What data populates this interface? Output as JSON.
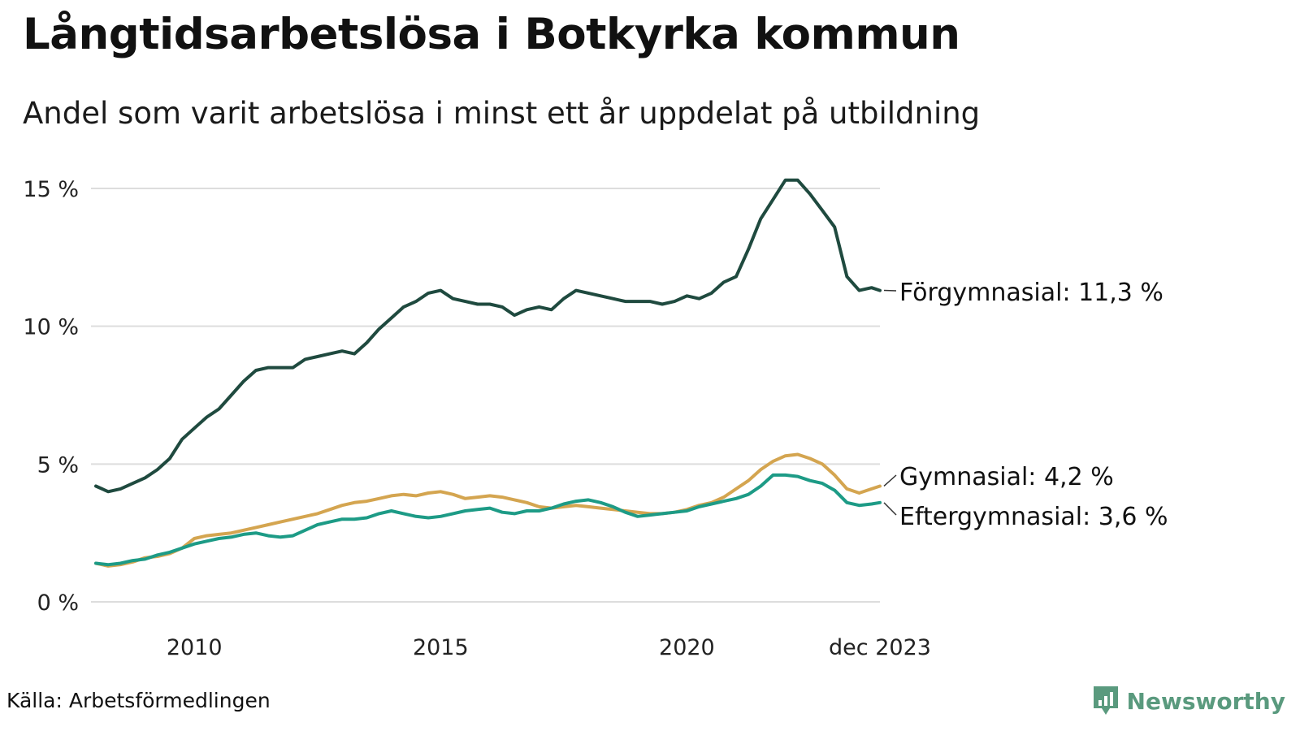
{
  "title": "Långtidsarbetslösa i Botkyrka kommun",
  "subtitle": "Andel som varit arbetslösa i minst ett år uppdelat på utbildning",
  "source": "Källa: Arbetsförmedlingen",
  "brand": "Newsworthy",
  "chart_data": {
    "type": "line",
    "title": "Långtidsarbetslösa i Botkyrka kommun",
    "subtitle": "Andel som varit arbetslösa i minst ett år uppdelat på utbildning",
    "xlabel": "",
    "ylabel": "",
    "x_range": [
      2008.0,
      2023.92
    ],
    "ylim": [
      0,
      15
    ],
    "y_ticks": [
      0,
      5,
      10,
      15
    ],
    "y_tick_labels": [
      "0 %",
      "5 %",
      "10 %",
      "15 %"
    ],
    "x_ticks": [
      2010,
      2015,
      2020,
      2023.92
    ],
    "x_tick_labels": [
      "2010",
      "2015",
      "2020",
      "dec 2023"
    ],
    "grid": true,
    "series": [
      {
        "name": "Förgymnasial",
        "end_label": "Förgymnasial: 11,3 %",
        "color": "#1f4a3f",
        "x": [
          2008.0,
          2008.25,
          2008.5,
          2008.75,
          2009.0,
          2009.25,
          2009.5,
          2009.75,
          2010.0,
          2010.25,
          2010.5,
          2010.75,
          2011.0,
          2011.25,
          2011.5,
          2011.75,
          2012.0,
          2012.25,
          2012.5,
          2012.75,
          2013.0,
          2013.25,
          2013.5,
          2013.75,
          2014.0,
          2014.25,
          2014.5,
          2014.75,
          2015.0,
          2015.25,
          2015.5,
          2015.75,
          2016.0,
          2016.25,
          2016.5,
          2016.75,
          2017.0,
          2017.25,
          2017.5,
          2017.75,
          2018.0,
          2018.25,
          2018.5,
          2018.75,
          2019.0,
          2019.25,
          2019.5,
          2019.75,
          2020.0,
          2020.25,
          2020.5,
          2020.75,
          2021.0,
          2021.25,
          2021.5,
          2021.75,
          2022.0,
          2022.25,
          2022.5,
          2022.75,
          2023.0,
          2023.25,
          2023.5,
          2023.75,
          2023.92
        ],
        "values": [
          4.2,
          4.0,
          4.1,
          4.3,
          4.5,
          4.8,
          5.2,
          5.9,
          6.3,
          6.7,
          7.0,
          7.5,
          8.0,
          8.4,
          8.5,
          8.5,
          8.5,
          8.8,
          8.9,
          9.0,
          9.1,
          9.0,
          9.4,
          9.9,
          10.3,
          10.7,
          10.9,
          11.2,
          11.3,
          11.0,
          10.9,
          10.8,
          10.8,
          10.7,
          10.4,
          10.6,
          10.7,
          10.6,
          11.0,
          11.3,
          11.2,
          11.1,
          11.0,
          10.9,
          10.9,
          10.9,
          10.8,
          10.9,
          11.1,
          11.0,
          11.2,
          11.6,
          11.8,
          12.8,
          13.9,
          14.6,
          15.3,
          15.3,
          14.8,
          14.2,
          13.6,
          11.8,
          11.3,
          11.4,
          11.3
        ]
      },
      {
        "name": "Gymnasial",
        "end_label": "Gymnasial:  4,2 %",
        "color": "#d4a550",
        "x": [
          2008.0,
          2008.25,
          2008.5,
          2008.75,
          2009.0,
          2009.25,
          2009.5,
          2009.75,
          2010.0,
          2010.25,
          2010.5,
          2010.75,
          2011.0,
          2011.25,
          2011.5,
          2011.75,
          2012.0,
          2012.25,
          2012.5,
          2012.75,
          2013.0,
          2013.25,
          2013.5,
          2013.75,
          2014.0,
          2014.25,
          2014.5,
          2014.75,
          2015.0,
          2015.25,
          2015.5,
          2015.75,
          2016.0,
          2016.25,
          2016.5,
          2016.75,
          2017.0,
          2017.25,
          2017.5,
          2017.75,
          2018.0,
          2018.25,
          2018.5,
          2018.75,
          2019.0,
          2019.25,
          2019.5,
          2019.75,
          2020.0,
          2020.25,
          2020.5,
          2020.75,
          2021.0,
          2021.25,
          2021.5,
          2021.75,
          2022.0,
          2022.25,
          2022.5,
          2022.75,
          2023.0,
          2023.25,
          2023.5,
          2023.75,
          2023.92
        ],
        "values": [
          1.4,
          1.3,
          1.35,
          1.45,
          1.6,
          1.65,
          1.75,
          1.95,
          2.3,
          2.4,
          2.45,
          2.5,
          2.6,
          2.7,
          2.8,
          2.9,
          3.0,
          3.1,
          3.2,
          3.35,
          3.5,
          3.6,
          3.65,
          3.75,
          3.85,
          3.9,
          3.85,
          3.95,
          4.0,
          3.9,
          3.75,
          3.8,
          3.85,
          3.8,
          3.7,
          3.6,
          3.45,
          3.4,
          3.45,
          3.5,
          3.45,
          3.4,
          3.35,
          3.3,
          3.25,
          3.2,
          3.2,
          3.25,
          3.35,
          3.5,
          3.6,
          3.8,
          4.1,
          4.4,
          4.8,
          5.1,
          5.3,
          5.35,
          5.2,
          5.0,
          4.6,
          4.1,
          3.95,
          4.1,
          4.2
        ]
      },
      {
        "name": "Eftergymnasial",
        "end_label": "Eftergymnasial:  3,6 %",
        "color": "#1d9b86",
        "x": [
          2008.0,
          2008.25,
          2008.5,
          2008.75,
          2009.0,
          2009.25,
          2009.5,
          2009.75,
          2010.0,
          2010.25,
          2010.5,
          2010.75,
          2011.0,
          2011.25,
          2011.5,
          2011.75,
          2012.0,
          2012.25,
          2012.5,
          2012.75,
          2013.0,
          2013.25,
          2013.5,
          2013.75,
          2014.0,
          2014.25,
          2014.5,
          2014.75,
          2015.0,
          2015.25,
          2015.5,
          2015.75,
          2016.0,
          2016.25,
          2016.5,
          2016.75,
          2017.0,
          2017.25,
          2017.5,
          2017.75,
          2018.0,
          2018.25,
          2018.5,
          2018.75,
          2019.0,
          2019.25,
          2019.5,
          2019.75,
          2020.0,
          2020.25,
          2020.5,
          2020.75,
          2021.0,
          2021.25,
          2021.5,
          2021.75,
          2022.0,
          2022.25,
          2022.5,
          2022.75,
          2023.0,
          2023.25,
          2023.5,
          2023.75,
          2023.92
        ],
        "values": [
          1.4,
          1.35,
          1.4,
          1.5,
          1.55,
          1.7,
          1.8,
          1.95,
          2.1,
          2.2,
          2.3,
          2.35,
          2.45,
          2.5,
          2.4,
          2.35,
          2.4,
          2.6,
          2.8,
          2.9,
          3.0,
          3.0,
          3.05,
          3.2,
          3.3,
          3.2,
          3.1,
          3.05,
          3.1,
          3.2,
          3.3,
          3.35,
          3.4,
          3.25,
          3.2,
          3.3,
          3.3,
          3.4,
          3.55,
          3.65,
          3.7,
          3.6,
          3.45,
          3.25,
          3.1,
          3.15,
          3.2,
          3.25,
          3.3,
          3.45,
          3.55,
          3.65,
          3.75,
          3.9,
          4.2,
          4.6,
          4.6,
          4.55,
          4.4,
          4.3,
          4.05,
          3.6,
          3.5,
          3.55,
          3.6
        ]
      }
    ]
  }
}
